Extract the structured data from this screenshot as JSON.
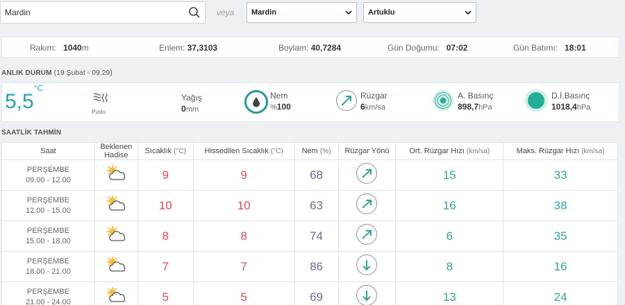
{
  "search": {
    "value": "Mardin",
    "separator": "veya"
  },
  "selects": {
    "city": "Mardin",
    "district": "Artuklu"
  },
  "station": {
    "altitude_label": "Rakım:",
    "altitude_value": "1040",
    "altitude_unit": "m",
    "lat_label": "Enlem:",
    "lat_value": "37,3103",
    "lon_label": "Boylam:",
    "lon_value": "40,7284",
    "sunrise_label": "Gün Doğumu:",
    "sunrise_value": "07:02",
    "sunset_label": "Gün Batımı:",
    "sunset_value": "18:01"
  },
  "current": {
    "title": "ANLIK DURUM",
    "date": "(19 Şubat - 09.29)",
    "temp": "5,5",
    "temp_unit": "°C",
    "condition": "Puslu",
    "rain_label": "Yağış",
    "rain_value": "0",
    "rain_unit": "mm",
    "humidity_label": "Nem",
    "humidity_prefix": "%",
    "humidity_value": "100",
    "wind_label": "Rüzgar",
    "wind_value": "6",
    "wind_unit": "km/sa",
    "pressure_label": "A. Basınç",
    "pressure_value": "898,7",
    "pressure_unit": "hPa",
    "sea_pressure_label": "D.İ.Basınç",
    "sea_pressure_value": "1018,4",
    "sea_pressure_unit": "hPa"
  },
  "hourly": {
    "title": "SAATLİK TAHMİN",
    "headers": {
      "time": "Saat",
      "event_1": "Beklenen",
      "event_2": "Hadise",
      "temp": "Sıcaklık",
      "temp_unit": "(°C)",
      "feels": "Hissedilen Sıcaklık",
      "feels_unit": "(°C)",
      "humidity": "Nem",
      "humidity_unit": "(%)",
      "wind_dir": "Rüzgar Yönü",
      "wind_avg": "Ort. Rüzgar Hızı",
      "wind_avg_unit": "(km/sa)",
      "wind_max": "Maks. Rüzgar Hızı",
      "wind_max_unit": "(km/sa)"
    },
    "rows": [
      {
        "day": "PERŞEMBE",
        "time": "09.00 - 12.00",
        "temp": "9",
        "feels": "9",
        "humidity": "68",
        "wind_dir": "ne",
        "wind_avg": "15",
        "wind_max": "33"
      },
      {
        "day": "PERŞEMBE",
        "time": "12.00 - 15.00",
        "temp": "10",
        "feels": "10",
        "humidity": "63",
        "wind_dir": "ne",
        "wind_avg": "16",
        "wind_max": "38"
      },
      {
        "day": "PERŞEMBE",
        "time": "15.00 - 18.00",
        "temp": "8",
        "feels": "8",
        "humidity": "74",
        "wind_dir": "ne",
        "wind_avg": "6",
        "wind_max": "35"
      },
      {
        "day": "PERŞEMBE",
        "time": "18.00 - 21.00",
        "temp": "7",
        "feels": "7",
        "humidity": "86",
        "wind_dir": "s",
        "wind_avg": "8",
        "wind_max": "16"
      },
      {
        "day": "PERŞEMBE",
        "time": "21.00 - 24.00",
        "temp": "5",
        "feels": "5",
        "humidity": "69",
        "wind_dir": "s",
        "wind_avg": "13",
        "wind_max": "24"
      }
    ]
  },
  "colors": {
    "accent": "#27a3b1",
    "temp": "#d94a55",
    "humidity": "#6d6a8a",
    "wind": "#2fa597"
  }
}
